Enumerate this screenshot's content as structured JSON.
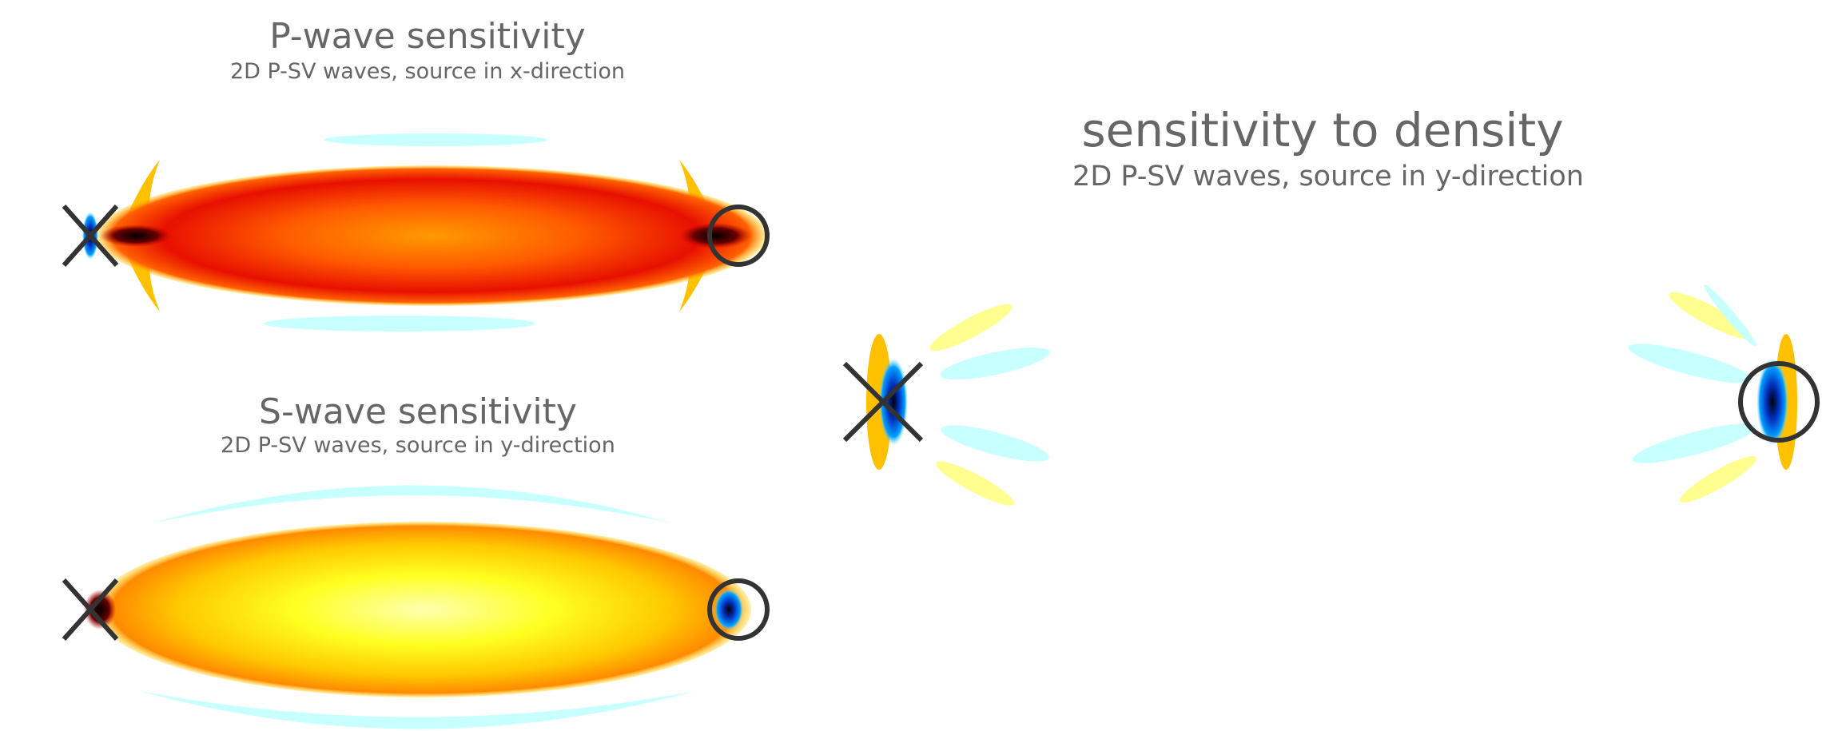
{
  "panels": [
    {
      "title": "P-wave sensitivity",
      "subtitle": "2D P-SV waves, source in x-direction"
    },
    {
      "title": "S-wave sensitivity",
      "subtitle": "2D P-SV waves, source in y-direction"
    },
    {
      "title": "sensitivity to density",
      "subtitle": "2D P-SV waves, source in y-direction"
    }
  ]
}
